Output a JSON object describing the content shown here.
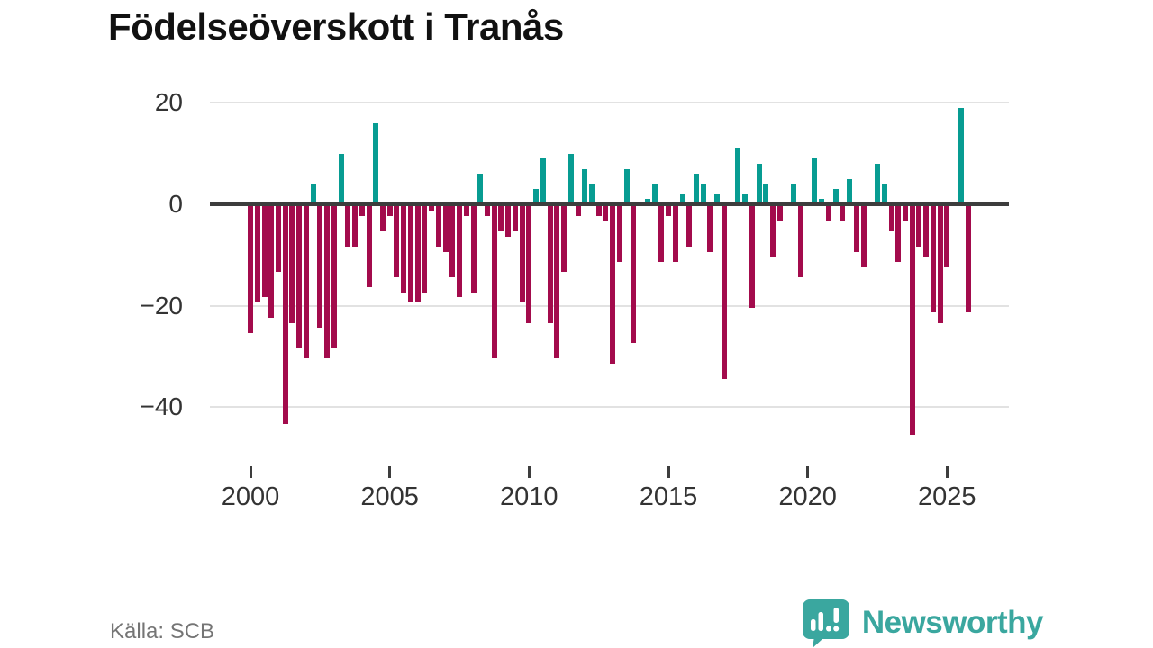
{
  "title": "Födelseöverskott i Tranås",
  "source": "Källa: SCB",
  "logo": {
    "brand": "Newsworthy",
    "color": "#3aa79f"
  },
  "chart_data": {
    "type": "bar",
    "title": "Födelseöverskott i Tranås",
    "xlabel": "",
    "ylabel": "",
    "start_year": 2000,
    "quarters_per_year": 4,
    "y_ticks": [
      20,
      0,
      -20,
      -40
    ],
    "ylim": [
      -47,
      22
    ],
    "x_ticks": [
      2000,
      2005,
      2010,
      2015,
      2020,
      2025
    ],
    "grid": "horizontal",
    "legend": "none",
    "positive_color": "#079c92",
    "negative_color": "#a30b4c",
    "values": [
      -25,
      -19,
      -18,
      -22,
      -13,
      -43,
      -23,
      -28,
      -30,
      4,
      -24,
      -30,
      -28,
      10,
      -8,
      -8,
      -2,
      -16,
      16,
      -5,
      -2,
      -14,
      -17,
      -19,
      -19,
      -17,
      -1,
      -8,
      -9,
      -14,
      -18,
      -2,
      -17,
      6,
      -2,
      -30,
      -5,
      -6,
      -5,
      -19,
      -23,
      3,
      9,
      -23,
      -30,
      -13,
      10,
      -2,
      7,
      4,
      -2,
      -3,
      -31,
      -11,
      7,
      -27,
      0,
      1,
      4,
      -11,
      -2,
      -11,
      2,
      -8,
      6,
      4,
      -9,
      2,
      -34,
      0,
      11,
      2,
      -20,
      8,
      4,
      -10,
      -3,
      0,
      4,
      -14,
      0,
      9,
      1,
      -3,
      3,
      -3,
      5,
      -9,
      -12,
      0,
      8,
      4,
      -5,
      -11,
      -3,
      -45,
      -8,
      -10,
      -21,
      -23,
      -12,
      0,
      19,
      -21
    ]
  }
}
